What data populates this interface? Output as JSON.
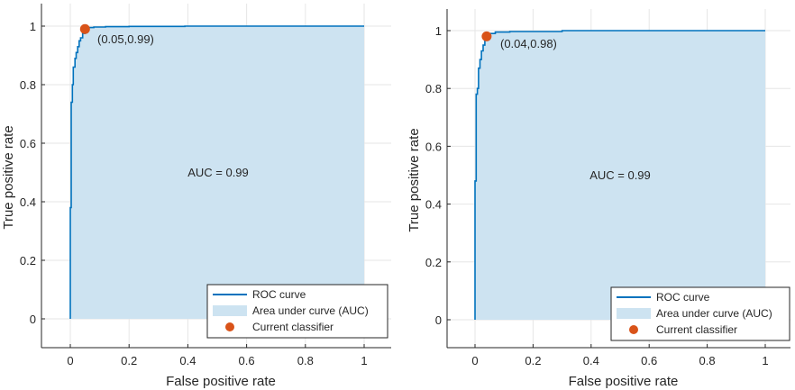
{
  "chart_data": [
    {
      "type": "area",
      "title": "",
      "xlabel": "False positive rate",
      "ylabel": "True positive rate",
      "xlim": [
        -0.1,
        1.1
      ],
      "ylim": [
        -0.1,
        1.06
      ],
      "xticks": [
        "0",
        "0.2",
        "0.4",
        "0.6",
        "0.8",
        "1"
      ],
      "yticks": [
        "0",
        "0.2",
        "0.4",
        "0.6",
        "0.8",
        "1"
      ],
      "grid": true,
      "legend_position": "bottom-right",
      "series": [
        {
          "name": "ROC curve",
          "x": [
            0,
            0,
            0.003,
            0.003,
            0.007,
            0.007,
            0.01,
            0.01,
            0.016,
            0.016,
            0.02,
            0.02,
            0.025,
            0.025,
            0.03,
            0.03,
            0.035,
            0.035,
            0.042,
            0.042,
            0.05,
            0.05,
            0.06,
            0.06,
            0.08,
            0.08,
            0.12,
            0.12,
            0.2,
            0.2,
            0.39,
            0.39,
            0.6,
            0.6,
            1
          ],
          "y": [
            0,
            0.38,
            0.38,
            0.74,
            0.74,
            0.8,
            0.8,
            0.86,
            0.86,
            0.89,
            0.89,
            0.91,
            0.91,
            0.93,
            0.93,
            0.95,
            0.95,
            0.96,
            0.96,
            0.975,
            0.975,
            0.99,
            0.99,
            0.995,
            0.995,
            0.997,
            0.997,
            0.998,
            0.998,
            0.999,
            0.999,
            1.0,
            1.0,
            1.0,
            1.0
          ]
        },
        {
          "name": "Area under curve (AUC)"
        },
        {
          "name": "Current classifier",
          "x": [
            0.05
          ],
          "y": [
            0.99
          ]
        }
      ],
      "annotations": [
        "AUC = 0.99",
        "(0.05,0.99)"
      ],
      "colors": {
        "curve": "#0072bd",
        "area": "#cde3f1",
        "point": "#d95319"
      }
    },
    {
      "type": "area",
      "title": "",
      "xlabel": "False positive rate",
      "ylabel": "True positive rate",
      "xlim": [
        -0.1,
        1.1
      ],
      "ylim": [
        -0.1,
        1.06
      ],
      "xticks": [
        "0",
        "0.2",
        "0.4",
        "0.6",
        "0.8",
        "1"
      ],
      "yticks": [
        "0",
        "0.2",
        "0.4",
        "0.6",
        "0.8",
        "1"
      ],
      "grid": true,
      "legend_position": "bottom-right",
      "series": [
        {
          "name": "ROC curve",
          "x": [
            0,
            0,
            0.004,
            0.004,
            0.008,
            0.008,
            0.012,
            0.012,
            0.017,
            0.017,
            0.022,
            0.022,
            0.028,
            0.028,
            0.034,
            0.034,
            0.04,
            0.04,
            0.05,
            0.05,
            0.07,
            0.07,
            0.12,
            0.12,
            0.3,
            0.3,
            0.6,
            0.6,
            1
          ],
          "y": [
            0,
            0.48,
            0.48,
            0.78,
            0.78,
            0.8,
            0.8,
            0.87,
            0.87,
            0.9,
            0.9,
            0.93,
            0.93,
            0.95,
            0.95,
            0.97,
            0.97,
            0.98,
            0.98,
            0.99,
            0.99,
            0.995,
            0.995,
            0.997,
            0.997,
            1.0,
            1.0,
            1.0,
            1.0
          ]
        },
        {
          "name": "Area under curve (AUC)"
        },
        {
          "name": "Current classifier",
          "x": [
            0.04
          ],
          "y": [
            0.98
          ]
        }
      ],
      "annotations": [
        "AUC = 0.99",
        "(0.04,0.98)"
      ],
      "colors": {
        "curve": "#0072bd",
        "area": "#cde3f1",
        "point": "#d95319"
      }
    }
  ]
}
